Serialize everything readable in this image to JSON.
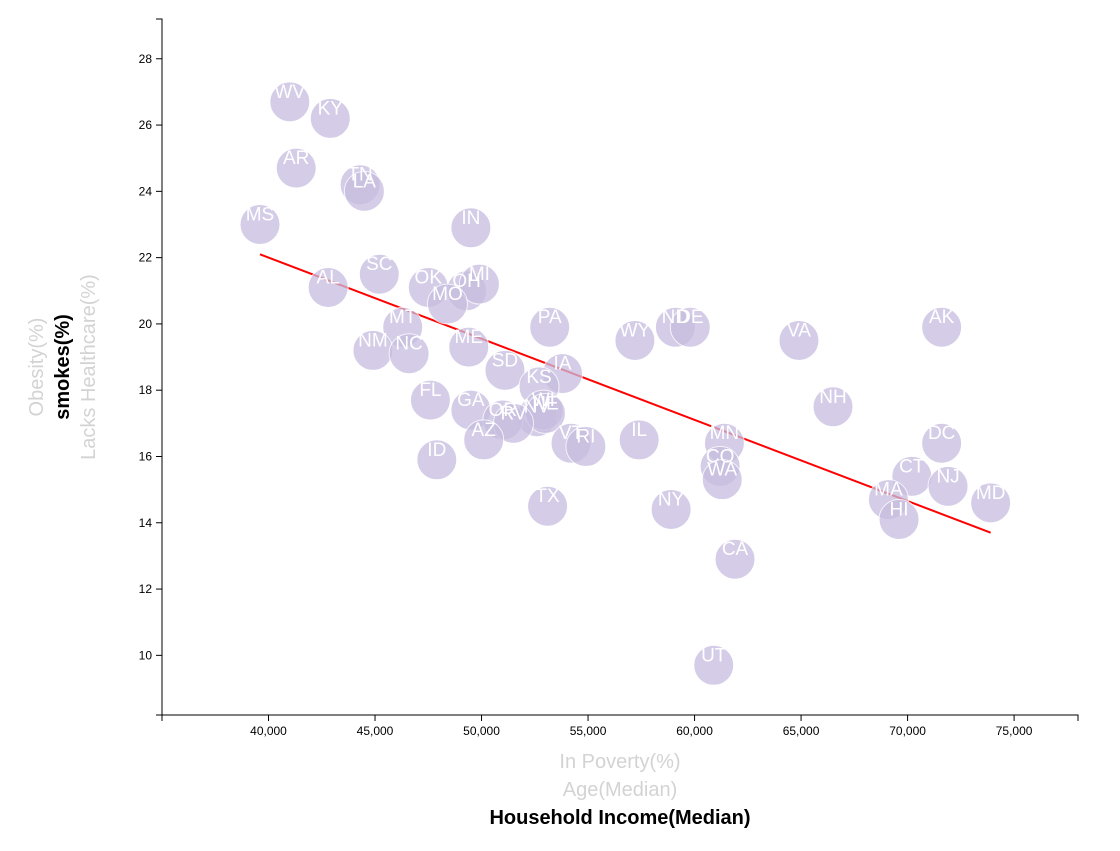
{
  "chart_data": {
    "type": "scatter",
    "xlim": [
      35000,
      78000
    ],
    "ylim": [
      8.2,
      29.2
    ],
    "x_ticks": [
      40000,
      45000,
      50000,
      55000,
      60000,
      65000,
      70000,
      75000
    ],
    "x_tick_labels": [
      "40,000",
      "45,000",
      "50,000",
      "55,000",
      "60,000",
      "65,000",
      "70,000",
      "75,000"
    ],
    "y_ticks": [
      10,
      12,
      14,
      16,
      18,
      20,
      22,
      24,
      26,
      28
    ],
    "y_tick_labels": [
      "10",
      "12",
      "14",
      "16",
      "18",
      "20",
      "22",
      "24",
      "26",
      "28"
    ],
    "x_axis_options": [
      {
        "label": "In Poverty(%)",
        "active": false
      },
      {
        "label": "Age(Median)",
        "active": false
      },
      {
        "label": "Household Income(Median)",
        "active": true
      }
    ],
    "y_axis_options": [
      {
        "label": "Obesity(%)",
        "active": false
      },
      {
        "label": "smokes(%)",
        "active": true
      },
      {
        "label": "Lacks Healthcare(%)",
        "active": false
      }
    ],
    "regression_line": {
      "color": "#ff0000",
      "x": [
        39600,
        73900
      ],
      "y": [
        22.1,
        13.7
      ]
    },
    "points": [
      {
        "abbr": "WV",
        "x": 41000,
        "y": 26.7
      },
      {
        "abbr": "KY",
        "x": 42900,
        "y": 26.2
      },
      {
        "abbr": "AR",
        "x": 41300,
        "y": 24.7
      },
      {
        "abbr": "TN",
        "x": 44300,
        "y": 24.2
      },
      {
        "abbr": "LA",
        "x": 44500,
        "y": 24.0
      },
      {
        "abbr": "MS",
        "x": 39600,
        "y": 23.0
      },
      {
        "abbr": "IN",
        "x": 49500,
        "y": 22.9
      },
      {
        "abbr": "SC",
        "x": 45200,
        "y": 21.5
      },
      {
        "abbr": "AL",
        "x": 42800,
        "y": 21.1
      },
      {
        "abbr": "OK",
        "x": 47500,
        "y": 21.1
      },
      {
        "abbr": "OH",
        "x": 49300,
        "y": 21.0
      },
      {
        "abbr": "MI",
        "x": 49900,
        "y": 21.2
      },
      {
        "abbr": "MO",
        "x": 48400,
        "y": 20.6
      },
      {
        "abbr": "MT",
        "x": 46300,
        "y": 19.9
      },
      {
        "abbr": "PA",
        "x": 53200,
        "y": 19.9
      },
      {
        "abbr": "ND",
        "x": 59100,
        "y": 19.9
      },
      {
        "abbr": "DE",
        "x": 59800,
        "y": 19.9
      },
      {
        "abbr": "AK",
        "x": 71600,
        "y": 19.9
      },
      {
        "abbr": "WY",
        "x": 57200,
        "y": 19.5
      },
      {
        "abbr": "VA",
        "x": 64900,
        "y": 19.5
      },
      {
        "abbr": "NM",
        "x": 44900,
        "y": 19.2
      },
      {
        "abbr": "NC",
        "x": 46600,
        "y": 19.1
      },
      {
        "abbr": "ME",
        "x": 49400,
        "y": 19.3
      },
      {
        "abbr": "SD",
        "x": 51100,
        "y": 18.6
      },
      {
        "abbr": "IA",
        "x": 53800,
        "y": 18.5
      },
      {
        "abbr": "KS",
        "x": 52700,
        "y": 18.1
      },
      {
        "abbr": "FL",
        "x": 47600,
        "y": 17.7
      },
      {
        "abbr": "NH",
        "x": 66500,
        "y": 17.5
      },
      {
        "abbr": "GA",
        "x": 49500,
        "y": 17.4
      },
      {
        "abbr": "NV",
        "x": 52600,
        "y": 17.2
      },
      {
        "abbr": "WI",
        "x": 52900,
        "y": 17.4
      },
      {
        "abbr": "NE",
        "x": 53000,
        "y": 17.3
      },
      {
        "abbr": "OR",
        "x": 51000,
        "y": 17.1
      },
      {
        "abbr": "RV",
        "x": 51500,
        "y": 17.0
      },
      {
        "abbr": "AZ",
        "x": 50100,
        "y": 16.5
      },
      {
        "abbr": "VT",
        "x": 54200,
        "y": 16.4
      },
      {
        "abbr": "RI",
        "x": 54900,
        "y": 16.3
      },
      {
        "abbr": "IL",
        "x": 57400,
        "y": 16.5
      },
      {
        "abbr": "MN",
        "x": 61400,
        "y": 16.4
      },
      {
        "abbr": "DC",
        "x": 71600,
        "y": 16.4
      },
      {
        "abbr": "ID",
        "x": 47900,
        "y": 15.9
      },
      {
        "abbr": "CO",
        "x": 61200,
        "y": 15.7
      },
      {
        "abbr": "WA",
        "x": 61300,
        "y": 15.3
      },
      {
        "abbr": "CT",
        "x": 70200,
        "y": 15.4
      },
      {
        "abbr": "NJ",
        "x": 71900,
        "y": 15.1
      },
      {
        "abbr": "MA",
        "x": 69100,
        "y": 14.7
      },
      {
        "abbr": "MD",
        "x": 73900,
        "y": 14.6
      },
      {
        "abbr": "TX",
        "x": 53100,
        "y": 14.5
      },
      {
        "abbr": "NY",
        "x": 58900,
        "y": 14.4
      },
      {
        "abbr": "HI",
        "x": 69600,
        "y": 14.1
      },
      {
        "abbr": "CA",
        "x": 61900,
        "y": 12.9
      },
      {
        "abbr": "UT",
        "x": 60900,
        "y": 9.7
      }
    ]
  }
}
